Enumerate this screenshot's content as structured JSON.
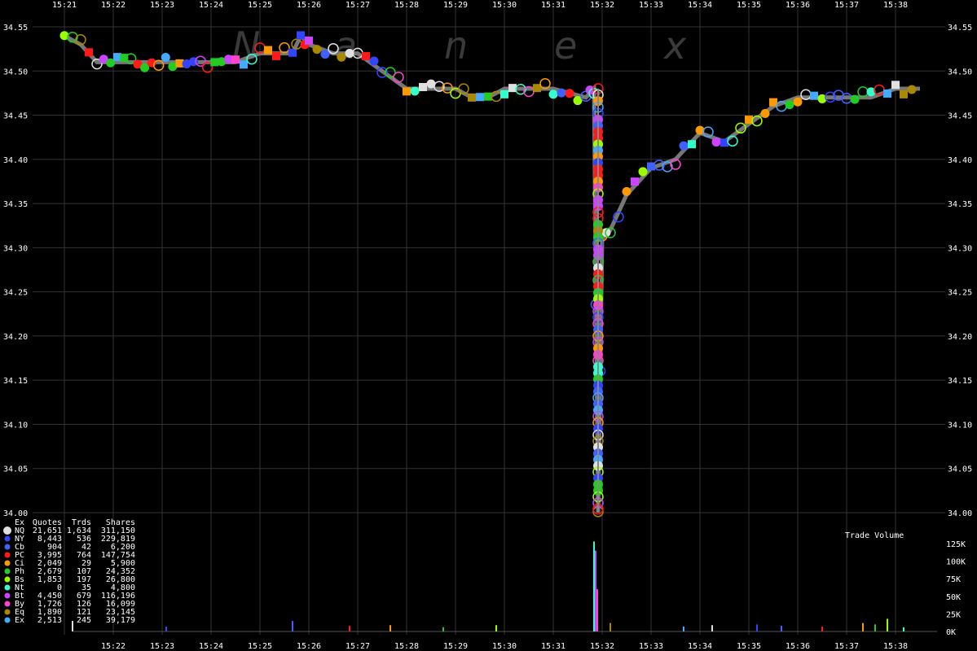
{
  "chart_data": {
    "type": "scatter",
    "watermark": [
      "N",
      "a",
      "n",
      "e",
      "x"
    ],
    "price_axis": {
      "ylim": [
        34.0,
        34.55
      ],
      "ticks": [
        "34.55",
        "34.50",
        "34.45",
        "34.40",
        "34.35",
        "34.30",
        "34.25",
        "34.20",
        "34.15",
        "34.10",
        "34.05",
        "34.00"
      ]
    },
    "time_axis": {
      "top_ticks": [
        "15:21",
        "15:22",
        "15:23",
        "15:24",
        "15:25",
        "15:26",
        "15:27",
        "15:28",
        "15:29",
        "15:30",
        "15:31",
        "15:32",
        "15:33",
        "15:34",
        "15:35",
        "15:36",
        "15:37",
        "15:38"
      ],
      "bottom_ticks": [
        "15:22",
        "15:23",
        "15:24",
        "15:25",
        "15:26",
        "15:27",
        "15:28",
        "15:29",
        "15:30",
        "15:31",
        "15:32",
        "15:33",
        "15:34",
        "15:35",
        "15:36",
        "15:37",
        "15:38"
      ]
    },
    "volume_axis": {
      "title": "Trade Volume",
      "ticks": [
        "125K",
        "100K",
        "75K",
        "50K",
        "25K",
        "0K"
      ],
      "ylim": [
        0,
        140000
      ]
    },
    "legend": {
      "headers": [
        "Ex",
        "Quotes",
        "Trds",
        "Shares"
      ],
      "rows": [
        {
          "ex": "NQ",
          "quotes": "21,651",
          "trds": "1,634",
          "shares": "311,150",
          "color": "#e0e0e0"
        },
        {
          "ex": "NY",
          "quotes": "8,443",
          "trds": "536",
          "shares": "229,819",
          "color": "#3344ff"
        },
        {
          "ex": "Cb",
          "quotes": "904",
          "trds": "42",
          "shares": "6,200",
          "color": "#4060ff"
        },
        {
          "ex": "PC",
          "quotes": "3,995",
          "trds": "764",
          "shares": "147,754",
          "color": "#ff1a1a"
        },
        {
          "ex": "Ci",
          "quotes": "2,049",
          "trds": "29",
          "shares": "5,900",
          "color": "#ff9900"
        },
        {
          "ex": "Ph",
          "quotes": "2,679",
          "trds": "107",
          "shares": "24,352",
          "color": "#22cc22"
        },
        {
          "ex": "Bs",
          "quotes": "1,853",
          "trds": "197",
          "shares": "26,800",
          "color": "#99ff00"
        },
        {
          "ex": "Nt",
          "quotes": "0",
          "trds": "35",
          "shares": "4,800",
          "color": "#33ffcc"
        },
        {
          "ex": "Bt",
          "quotes": "4,450",
          "trds": "679",
          "shares": "116,196",
          "color": "#cc44ff"
        },
        {
          "ex": "By",
          "quotes": "1,726",
          "trds": "126",
          "shares": "16,099",
          "color": "#ff44cc"
        },
        {
          "ex": "Eq",
          "quotes": "1,890",
          "trds": "121",
          "shares": "23,145",
          "color": "#aa8800"
        },
        {
          "ex": "Ex",
          "quotes": "2,513",
          "trds": "245",
          "shares": "39,179",
          "color": "#44aaff"
        }
      ]
    },
    "price_path": [
      {
        "t": "15:21:00",
        "p": 34.54
      },
      {
        "t": "15:21:20",
        "p": 34.53
      },
      {
        "t": "15:21:40",
        "p": 34.51
      },
      {
        "t": "15:22:30",
        "p": 34.51
      },
      {
        "t": "15:23:30",
        "p": 34.51
      },
      {
        "t": "15:24:30",
        "p": 34.51
      },
      {
        "t": "15:25:00",
        "p": 34.52
      },
      {
        "t": "15:25:40",
        "p": 34.52
      },
      {
        "t": "15:25:50",
        "p": 34.54
      },
      {
        "t": "15:26:00",
        "p": 34.53
      },
      {
        "t": "15:26:30",
        "p": 34.52
      },
      {
        "t": "15:27:00",
        "p": 34.52
      },
      {
        "t": "15:27:30",
        "p": 34.5
      },
      {
        "t": "15:28:00",
        "p": 34.48
      },
      {
        "t": "15:28:30",
        "p": 34.48
      },
      {
        "t": "15:29:00",
        "p": 34.48
      },
      {
        "t": "15:29:20",
        "p": 34.47
      },
      {
        "t": "15:29:40",
        "p": 34.47
      },
      {
        "t": "15:30:00",
        "p": 34.48
      },
      {
        "t": "15:30:30",
        "p": 34.48
      },
      {
        "t": "15:31:00",
        "p": 34.48
      },
      {
        "t": "15:31:40",
        "p": 34.47
      },
      {
        "t": "15:31:50",
        "p": 34.48
      },
      {
        "t": "15:31:55",
        "p": 34.0
      },
      {
        "t": "15:32:00",
        "p": 34.31
      },
      {
        "t": "15:32:10",
        "p": 34.32
      },
      {
        "t": "15:32:30",
        "p": 34.36
      },
      {
        "t": "15:33:00",
        "p": 34.39
      },
      {
        "t": "15:33:30",
        "p": 34.4
      },
      {
        "t": "15:34:00",
        "p": 34.43
      },
      {
        "t": "15:34:30",
        "p": 34.42
      },
      {
        "t": "15:35:00",
        "p": 34.44
      },
      {
        "t": "15:35:30",
        "p": 34.46
      },
      {
        "t": "15:36:00",
        "p": 34.47
      },
      {
        "t": "15:36:30",
        "p": 34.47
      },
      {
        "t": "15:37:00",
        "p": 34.47
      },
      {
        "t": "15:37:30",
        "p": 34.47
      },
      {
        "t": "15:38:00",
        "p": 34.48
      },
      {
        "t": "15:38:30",
        "p": 34.48
      }
    ],
    "spike": {
      "t": "15:31:55",
      "low": 34.0,
      "high": 34.48
    },
    "volume_bars": [
      {
        "t": "15:21:10",
        "v": 15000
      },
      {
        "t": "15:23:05",
        "v": 7000
      },
      {
        "t": "15:25:40",
        "v": 15000
      },
      {
        "t": "15:26:50",
        "v": 8000
      },
      {
        "t": "15:27:40",
        "v": 9000
      },
      {
        "t": "15:28:45",
        "v": 6000
      },
      {
        "t": "15:29:50",
        "v": 9000
      },
      {
        "t": "15:31:50",
        "v": 128000
      },
      {
        "t": "15:31:52",
        "v": 115000
      },
      {
        "t": "15:31:54",
        "v": 60000
      },
      {
        "t": "15:32:10",
        "v": 12000
      },
      {
        "t": "15:33:40",
        "v": 7000
      },
      {
        "t": "15:34:15",
        "v": 9000
      },
      {
        "t": "15:35:10",
        "v": 10000
      },
      {
        "t": "15:35:40",
        "v": 8000
      },
      {
        "t": "15:36:30",
        "v": 7000
      },
      {
        "t": "15:37:20",
        "v": 12000
      },
      {
        "t": "15:37:35",
        "v": 10000
      },
      {
        "t": "15:37:50",
        "v": 18000
      },
      {
        "t": "15:38:10",
        "v": 6000
      }
    ]
  }
}
